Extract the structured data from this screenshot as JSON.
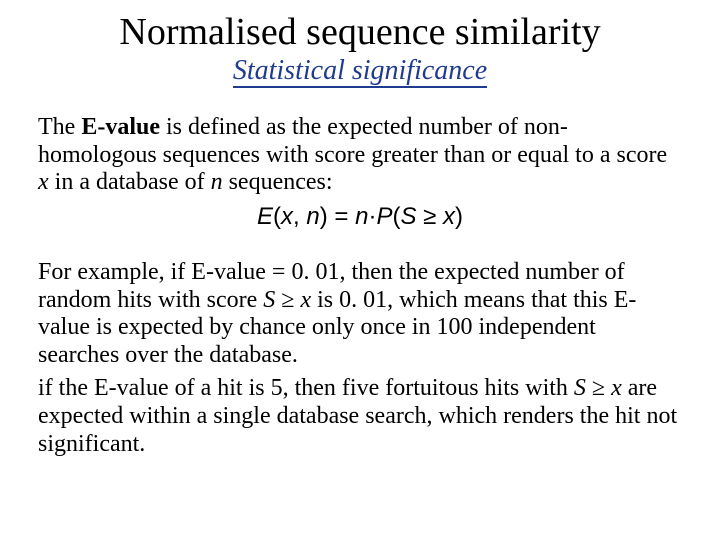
{
  "colors": {
    "title": "#000000",
    "subtitle": "#1f3b8f",
    "body": "#000000",
    "formula": "#000000",
    "background": "#ffffff"
  },
  "typography": {
    "title_fontsize": 38,
    "subtitle_fontsize": 28,
    "body_fontsize": 24,
    "formula_fontsize": 24,
    "body_family": "Times New Roman",
    "formula_family": "Arial"
  },
  "title": "Normalised sequence similarity",
  "subtitle": "Statistical significance",
  "def": {
    "lead": "The ",
    "term": "E-value",
    "rest1": " is defined as the expected number of non-homologous sequences with score greater than or equal to a score ",
    "var1": "x",
    "rest2": " in a database of ",
    "var2": "n",
    "rest3": " sequences:"
  },
  "formula": {
    "E": "E",
    "lp": "(",
    "x": "x",
    "comma": ", ",
    "n": "n",
    "rp": ")",
    "eq": " = ",
    "n2": "n",
    "dot": "·",
    "P": "P",
    "lp2": "(",
    "S": "S",
    "ge": " ≥ ",
    "x2": "x",
    "rp2": ")"
  },
  "ex": {
    "a1": "For example, if E-value = 0. 01, then the expected number of random hits with score ",
    "S": "S",
    "ge1": " ≥ ",
    "x": "x",
    "a2": " is 0. 01, which means that this E-value is expected by chance only once in 100 independent searches over the database.",
    "b1": "if the E-value of a hit is 5, then five fortuitous hits with ",
    "S2": "S",
    "ge2": " ≥ ",
    "x2": "x",
    "b2": " are expected within a single database search, which renders the hit not significant."
  }
}
